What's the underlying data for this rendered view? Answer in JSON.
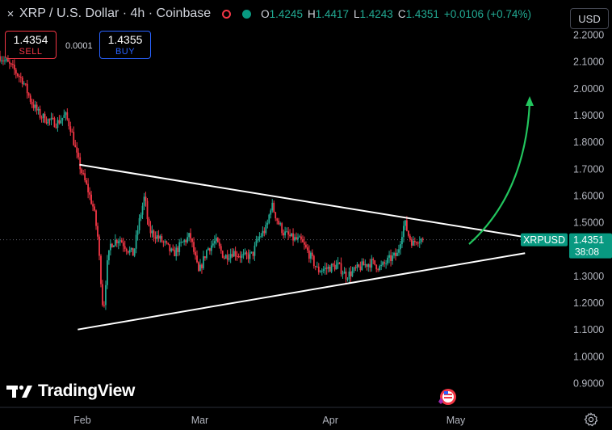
{
  "header": {
    "close_glyph": "×",
    "symbol": "XRP / U.S. Dollar · 4h · Coinbase",
    "ohlc": [
      {
        "k": "O",
        "v": "1.4245"
      },
      {
        "k": "H",
        "v": "1.4417"
      },
      {
        "k": "L",
        "v": "1.4243"
      },
      {
        "k": "C",
        "v": "1.4351"
      }
    ],
    "change": "+0.0106 (+0.74%)"
  },
  "currency_button": "USD",
  "trade": {
    "sell_price": "1.4354",
    "sell_label": "SELL",
    "buy_price": "1.4355",
    "buy_label": "BUY",
    "spread": "0.0001"
  },
  "logo_text": "TradingView",
  "colors": {
    "up": "#22ab94",
    "down": "#f23645",
    "accent": "#089981",
    "arrow": "#22c55e"
  },
  "chart_data": {
    "type": "candlestick",
    "symbol_label": "XRPUSD",
    "last_price": "1.4351",
    "countdown": "38:08",
    "y_ticks": [
      "2.2000",
      "2.1000",
      "2.0000",
      "1.9000",
      "1.8000",
      "1.7000",
      "1.6000",
      "1.5000",
      "1.4000",
      "1.3000",
      "1.2000",
      "1.1000",
      "1.0000",
      "0.9000"
    ],
    "ylim": [
      0.87,
      2.22
    ],
    "x_ticks": [
      {
        "label": "Feb",
        "t": 0.145
      },
      {
        "label": "Mar",
        "t": 0.352
      },
      {
        "label": "Apr",
        "t": 0.582
      },
      {
        "label": "May",
        "t": 0.803
      }
    ],
    "price_path": [
      [
        0,
        2.12
      ],
      [
        0.02,
        2.08
      ],
      [
        0.04,
        2.03
      ],
      [
        0.055,
        1.95
      ],
      [
        0.07,
        1.9
      ],
      [
        0.085,
        1.88
      ],
      [
        0.1,
        1.87
      ],
      [
        0.115,
        1.9
      ],
      [
        0.125,
        1.85
      ],
      [
        0.135,
        1.75
      ],
      [
        0.145,
        1.68
      ],
      [
        0.155,
        1.62
      ],
      [
        0.165,
        1.55
      ],
      [
        0.172,
        1.45
      ],
      [
        0.178,
        1.28
      ],
      [
        0.182,
        1.16
      ],
      [
        0.188,
        1.33
      ],
      [
        0.195,
        1.42
      ],
      [
        0.21,
        1.44
      ],
      [
        0.225,
        1.4
      ],
      [
        0.235,
        1.38
      ],
      [
        0.245,
        1.5
      ],
      [
        0.255,
        1.6
      ],
      [
        0.262,
        1.47
      ],
      [
        0.275,
        1.45
      ],
      [
        0.29,
        1.42
      ],
      [
        0.305,
        1.38
      ],
      [
        0.32,
        1.42
      ],
      [
        0.335,
        1.45
      ],
      [
        0.35,
        1.31
      ],
      [
        0.365,
        1.4
      ],
      [
        0.38,
        1.43
      ],
      [
        0.395,
        1.37
      ],
      [
        0.41,
        1.39
      ],
      [
        0.43,
        1.37
      ],
      [
        0.445,
        1.38
      ],
      [
        0.455,
        1.44
      ],
      [
        0.47,
        1.48
      ],
      [
        0.478,
        1.57
      ],
      [
        0.49,
        1.5
      ],
      [
        0.5,
        1.46
      ],
      [
        0.515,
        1.44
      ],
      [
        0.53,
        1.43
      ],
      [
        0.545,
        1.38
      ],
      [
        0.56,
        1.32
      ],
      [
        0.58,
        1.33
      ],
      [
        0.595,
        1.34
      ],
      [
        0.61,
        1.3
      ],
      [
        0.625,
        1.32
      ],
      [
        0.64,
        1.34
      ],
      [
        0.655,
        1.35
      ],
      [
        0.67,
        1.33
      ],
      [
        0.685,
        1.36
      ],
      [
        0.7,
        1.38
      ],
      [
        0.708,
        1.46
      ],
      [
        0.713,
        1.5
      ],
      [
        0.72,
        1.45
      ],
      [
        0.728,
        1.42
      ],
      [
        0.735,
        1.44
      ],
      [
        0.745,
        1.435
      ]
    ],
    "trendlines": [
      {
        "name": "upper",
        "from": [
          0.14,
          1.715
        ],
        "to": [
          0.925,
          1.445
        ]
      },
      {
        "name": "lower",
        "from": [
          0.137,
          1.1
        ],
        "to": [
          0.925,
          1.385
        ]
      }
    ]
  }
}
